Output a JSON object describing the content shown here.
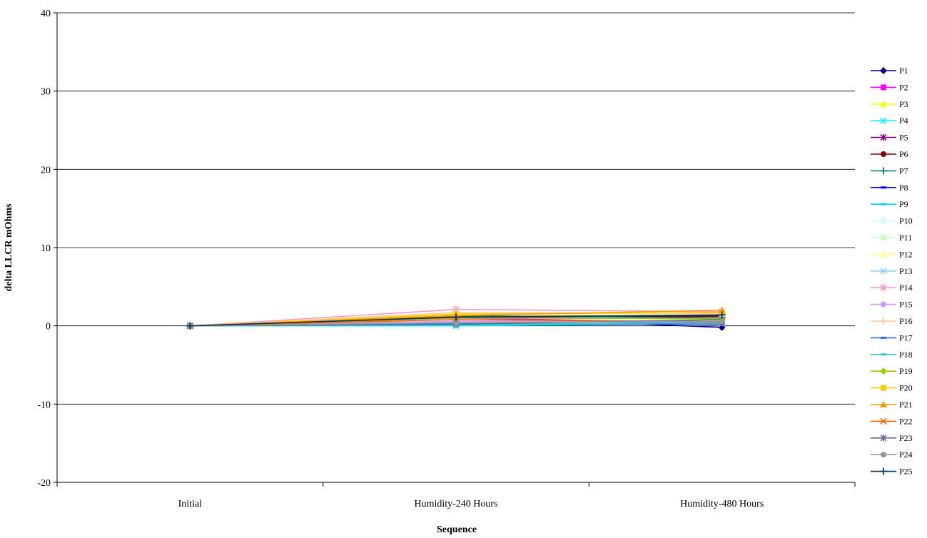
{
  "chart_data": {
    "type": "line",
    "title": "",
    "xlabel": "Sequence",
    "ylabel": "delta LLCR mOhms",
    "categories": [
      "Initial",
      "Humidity-240 Hours",
      "Humidity-480 Hours"
    ],
    "ylim": [
      -20,
      40
    ],
    "yticks": [
      -20,
      -10,
      0,
      10,
      20,
      30,
      40
    ],
    "grid": true,
    "legend": "right",
    "series": [
      {
        "name": "P1",
        "color": "#000080",
        "marker": "diamond",
        "values": [
          0,
          1.2,
          -0.2
        ]
      },
      {
        "name": "P2",
        "color": "#FF00FF",
        "marker": "square",
        "values": [
          0,
          1.0,
          0.4
        ]
      },
      {
        "name": "P3",
        "color": "#FFFF00",
        "marker": "triangle",
        "values": [
          0,
          1.4,
          1.6
        ]
      },
      {
        "name": "P4",
        "color": "#00FFFF",
        "marker": "x",
        "values": [
          0,
          0.0,
          0.3
        ]
      },
      {
        "name": "P5",
        "color": "#800080",
        "marker": "star",
        "values": [
          0,
          1.2,
          1.3
        ]
      },
      {
        "name": "P6",
        "color": "#800000",
        "marker": "circle",
        "values": [
          0,
          1.1,
          1.2
        ]
      },
      {
        "name": "P7",
        "color": "#008080",
        "marker": "plus",
        "values": [
          0,
          1.3,
          1.0
        ]
      },
      {
        "name": "P8",
        "color": "#0000FF",
        "marker": "dash",
        "values": [
          0,
          0.4,
          0.5
        ]
      },
      {
        "name": "P9",
        "color": "#00CCFF",
        "marker": "dash",
        "values": [
          0,
          0.1,
          0.3
        ]
      },
      {
        "name": "P10",
        "color": "#CCFFFF",
        "marker": "diamond",
        "values": [
          0,
          0.3,
          0.4
        ]
      },
      {
        "name": "P11",
        "color": "#CCFFCC",
        "marker": "square",
        "values": [
          0,
          0.5,
          0.6
        ]
      },
      {
        "name": "P12",
        "color": "#FFFF99",
        "marker": "triangle",
        "values": [
          0,
          1.6,
          1.5
        ]
      },
      {
        "name": "P13",
        "color": "#99CCFF",
        "marker": "x",
        "values": [
          0,
          0.2,
          0.4
        ]
      },
      {
        "name": "P14",
        "color": "#FF99CC",
        "marker": "star",
        "values": [
          0,
          2.1,
          1.8
        ]
      },
      {
        "name": "P15",
        "color": "#CC99FF",
        "marker": "circle",
        "values": [
          0,
          0.6,
          0.5
        ]
      },
      {
        "name": "P16",
        "color": "#FFCC99",
        "marker": "plus",
        "values": [
          0,
          1.7,
          1.6
        ]
      },
      {
        "name": "P17",
        "color": "#3366FF",
        "marker": "dash",
        "values": [
          0,
          0.3,
          0.2
        ]
      },
      {
        "name": "P18",
        "color": "#33CCCC",
        "marker": "dash",
        "values": [
          0,
          0.2,
          0.4
        ]
      },
      {
        "name": "P19",
        "color": "#99CC00",
        "marker": "diamond",
        "values": [
          0,
          1.0,
          0.9
        ]
      },
      {
        "name": "P20",
        "color": "#FFCC00",
        "marker": "square",
        "values": [
          0,
          1.5,
          1.7
        ]
      },
      {
        "name": "P21",
        "color": "#FF9900",
        "marker": "triangle",
        "values": [
          0,
          1.3,
          2.0
        ]
      },
      {
        "name": "P22",
        "color": "#FF6600",
        "marker": "x",
        "values": [
          0,
          0.8,
          0.5
        ]
      },
      {
        "name": "P23",
        "color": "#666699",
        "marker": "star",
        "values": [
          0,
          0.2,
          0.8
        ]
      },
      {
        "name": "P24",
        "color": "#969696",
        "marker": "circle",
        "values": [
          0,
          0.4,
          0.6
        ]
      },
      {
        "name": "P25",
        "color": "#003366",
        "marker": "plus",
        "values": [
          0,
          1.1,
          1.4
        ]
      }
    ]
  }
}
